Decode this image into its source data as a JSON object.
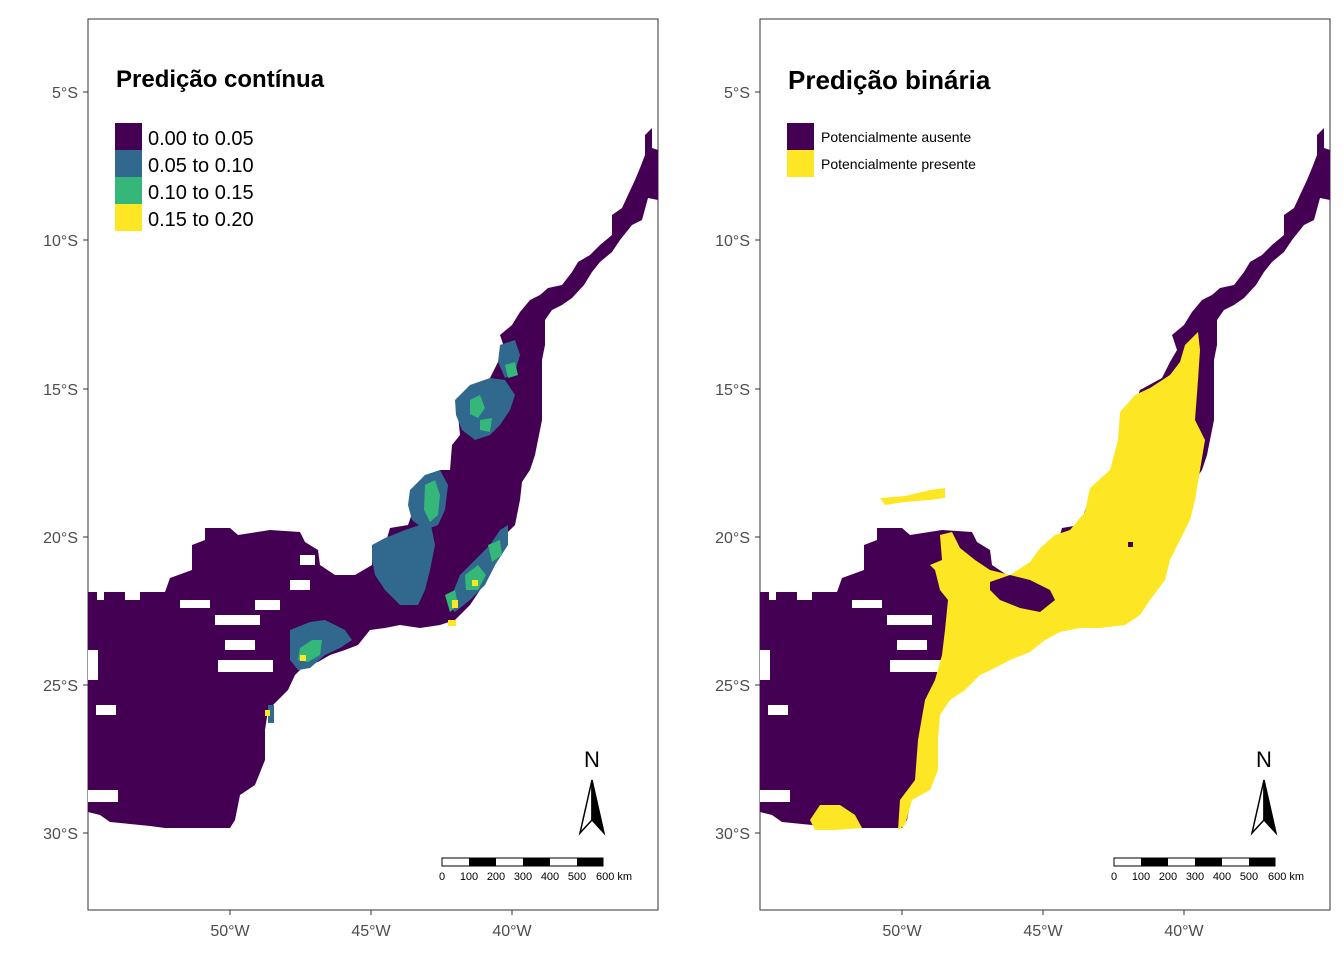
{
  "panels": [
    {
      "id": "continuous",
      "title": "Predição contínua",
      "legend": [
        {
          "label": "0.00 to 0.05",
          "color": "#440154"
        },
        {
          "label": "0.05 to 0.10",
          "color": "#31688e"
        },
        {
          "label": "0.10 to 0.15",
          "color": "#35b779"
        },
        {
          "label": "0.15 to 0.20",
          "color": "#fde725"
        }
      ]
    },
    {
      "id": "binary",
      "title": "Predição binária",
      "legend": [
        {
          "label": "Potencialmente ausente",
          "color": "#440154"
        },
        {
          "label": "Potencialmente presente",
          "color": "#fde725"
        }
      ]
    }
  ],
  "axes": {
    "y_ticks": [
      "5°S",
      "10°S",
      "15°S",
      "20°S",
      "25°S",
      "30°S"
    ],
    "x_ticks": [
      "50°W",
      "45°W",
      "40°W"
    ]
  },
  "north_arrow": {
    "label": "N"
  },
  "scale_bar": {
    "labels": [
      "0",
      "100",
      "200",
      "300",
      "400",
      "500",
      "600 km"
    ]
  },
  "colors": {
    "absent": "#440154",
    "present": "#fde725",
    "class2": "#31688e",
    "class3": "#35b779"
  }
}
